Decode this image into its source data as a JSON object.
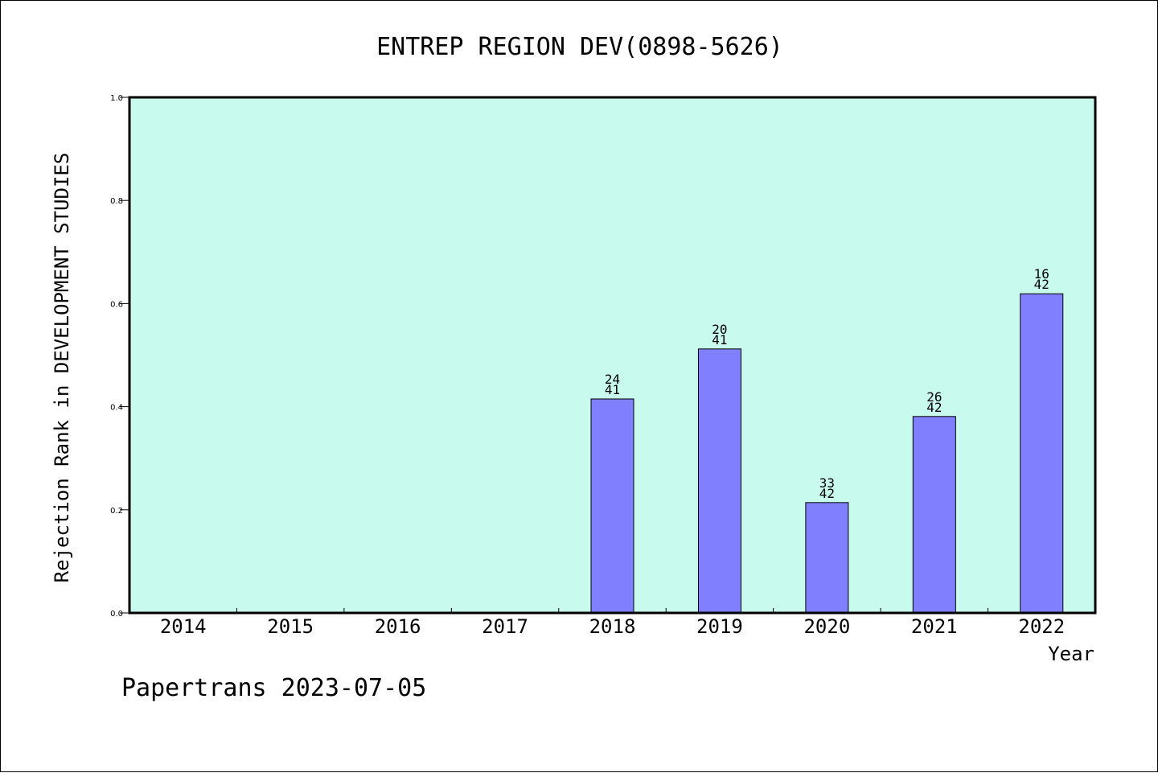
{
  "chart_data": {
    "type": "bar",
    "title": "ENTREP REGION DEV(0898-5626)",
    "xlabel": "Year",
    "ylabel": "Rejection Rank in DEVELOPMENT STUDIES",
    "ylim": [
      0,
      1.0
    ],
    "yticks": [
      "0.0",
      "0.2",
      "0.4",
      "0.6",
      "0.8",
      "1.0"
    ],
    "categories": [
      "2014",
      "2015",
      "2016",
      "2017",
      "2018",
      "2019",
      "2020",
      "2021",
      "2022"
    ],
    "values": [
      null,
      null,
      null,
      null,
      0.415,
      0.512,
      0.214,
      0.381,
      0.619
    ],
    "labels": [
      null,
      null,
      null,
      null,
      {
        "rank": "24",
        "total": "41"
      },
      {
        "rank": "20",
        "total": "41"
      },
      {
        "rank": "33",
        "total": "42"
      },
      {
        "rank": "26",
        "total": "42"
      },
      {
        "rank": "16",
        "total": "42"
      }
    ],
    "plot_background": "#c8fbed",
    "bar_color": "#8080ff",
    "grid": false
  },
  "footer": "Papertrans 2023-07-05"
}
